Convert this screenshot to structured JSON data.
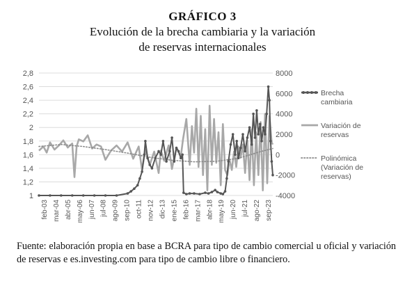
{
  "figure_label": "GRÁFICO 3",
  "title_line1": "Evolución de la brecha cambiaria y la variación",
  "title_line2": "de reservas internacionales",
  "source": "Fuente: elaboración propia en base a BCRA para tipo de cambio comercial u oficial y variación de reservas e es.investing.com para tipo de cambio libre o financiero.",
  "chart_data": {
    "type": "line",
    "x_tick_labels": [
      "feb-03",
      "mar-04",
      "abr-05",
      "may-06",
      "jun-07",
      "jul-08",
      "ago-09",
      "sep-10",
      "oct-11",
      "nov-12",
      "dic-13",
      "ene-15",
      "feb-16",
      "mar-17",
      "abr-18",
      "may-19",
      "jun-20",
      "jul-21",
      "ago-22",
      "sep-23"
    ],
    "y_left": {
      "ylim": [
        1,
        2.8
      ],
      "ticks": [
        "1",
        "1,2",
        "1,4",
        "1,6",
        "1,8",
        "2",
        "2,2",
        "2,4",
        "2,6",
        "2,8"
      ]
    },
    "y_right": {
      "ylim": [
        -4000,
        8000
      ],
      "ticks": [
        "-4000",
        "-2000",
        "0",
        "2000",
        "4000",
        "6000",
        "8000"
      ]
    },
    "grid": true,
    "legend_position": "right",
    "colors": {
      "brecha": "#555555",
      "reservas": "#a8a8a8",
      "polinomica": "#8a8a8a"
    },
    "series": [
      {
        "name": "Brecha cambiaria",
        "axis": "left",
        "style": "line-markers",
        "x": [
          2003,
          2004,
          2005,
          2006,
          2007,
          2008,
          2009,
          2010,
          2011,
          2011.3,
          2011.6,
          2011.9,
          2012.1,
          2012.3,
          2012.5,
          2012.6,
          2012.8,
          2013,
          2013.2,
          2013.5,
          2013.8,
          2014,
          2014.2,
          2014.5,
          2014.8,
          2015,
          2015.2,
          2015.4,
          2015.6,
          2015.8,
          2015.95,
          2016.05,
          2016.3,
          2016.6,
          2017,
          2017.5,
          2018,
          2018.3,
          2018.6,
          2018.9,
          2019.1,
          2019.4,
          2019.6,
          2019.8,
          2019.95,
          2020.1,
          2020.3,
          2020.5,
          2020.7,
          2020.85,
          2021,
          2021.2,
          2021.4,
          2021.6,
          2021.8,
          2022,
          2022.2,
          2022.35,
          2022.5,
          2022.65,
          2022.8,
          2022.95,
          2023.1,
          2023.25,
          2023.4,
          2023.55,
          2023.7,
          2023.8,
          2023.9,
          2024,
          2024.1
        ],
        "y": [
          1,
          1,
          1,
          1,
          1,
          1,
          1,
          1,
          1.03,
          1.06,
          1.1,
          1.15,
          1.25,
          1.35,
          1.6,
          1.8,
          1.55,
          1.45,
          1.4,
          1.55,
          1.65,
          1.6,
          1.8,
          1.5,
          1.65,
          1.85,
          1.5,
          1.7,
          1.65,
          1.55,
          1.6,
          1.04,
          1.02,
          1.03,
          1.03,
          1.02,
          1.04,
          1.03,
          1.05,
          1.08,
          1.05,
          1.03,
          1.02,
          1.06,
          1.25,
          1.5,
          1.75,
          1.9,
          1.6,
          1.8,
          1.55,
          1.7,
          1.9,
          1.65,
          1.85,
          2.0,
          1.75,
          2.2,
          1.85,
          2.25,
          1.9,
          2.05,
          1.8,
          2.0,
          1.9,
          2.2,
          2.6,
          2.4,
          1.8,
          1.5,
          1.3
        ]
      },
      {
        "name": "Variación de reservas",
        "axis": "right",
        "style": "line",
        "x": [
          2003,
          2003.4,
          2003.7,
          2004,
          2004.4,
          2004.8,
          2005.2,
          2005.6,
          2006,
          2006.2,
          2006.4,
          2006.6,
          2007,
          2007.4,
          2007.8,
          2008.2,
          2008.6,
          2009,
          2009.5,
          2010,
          2010.5,
          2011,
          2011.5,
          2012,
          2012.3,
          2012.6,
          2013,
          2013.4,
          2013.8,
          2014,
          2014.3,
          2014.7,
          2015,
          2015.4,
          2015.8,
          2016,
          2016.3,
          2016.6,
          2016.8,
          2017,
          2017.2,
          2017.4,
          2017.6,
          2017.8,
          2018,
          2018.2,
          2018.4,
          2018.6,
          2018.8,
          2019,
          2019.2,
          2019.4,
          2019.6,
          2019.8,
          2020,
          2020.2,
          2020.4,
          2020.6,
          2020.8,
          2021,
          2021.2,
          2021.4,
          2021.6,
          2021.8,
          2022,
          2022.2,
          2022.4,
          2022.6,
          2022.8,
          2023,
          2023.2,
          2023.4,
          2023.6,
          2023.8,
          2024,
          2024.1
        ],
        "y": [
          400,
          800,
          200,
          1200,
          500,
          900,
          1400,
          700,
          1100,
          -2200,
          800,
          1500,
          1300,
          1900,
          600,
          1000,
          800,
          -500,
          400,
          900,
          300,
          1200,
          -400,
          800,
          -1500,
          500,
          -1000,
          300,
          -1800,
          400,
          -600,
          900,
          -1400,
          700,
          -200,
          1500,
          3500,
          -1000,
          2800,
          200,
          4500,
          -1200,
          3800,
          -2000,
          2500,
          -3500,
          4800,
          -1000,
          3500,
          -800,
          2200,
          -3000,
          3000,
          -1500,
          -2000,
          -500,
          -1500,
          300,
          -1200,
          800,
          -300,
          1000,
          -1800,
          1400,
          -2500,
          2500,
          -3000,
          2200,
          -2000,
          3200,
          -3500,
          4000,
          -2800,
          3800,
          1200,
          1000
        ]
      },
      {
        "name": "Polinómica (Variación de reservas)",
        "axis": "right",
        "style": "dotted",
        "x": [
          2003,
          2005,
          2007,
          2009,
          2011,
          2013,
          2015,
          2017,
          2019,
          2021,
          2023,
          2024.1
        ],
        "y": [
          800,
          1000,
          800,
          500,
          150,
          -250,
          -550,
          -700,
          -650,
          -350,
          300,
          600
        ]
      }
    ]
  }
}
